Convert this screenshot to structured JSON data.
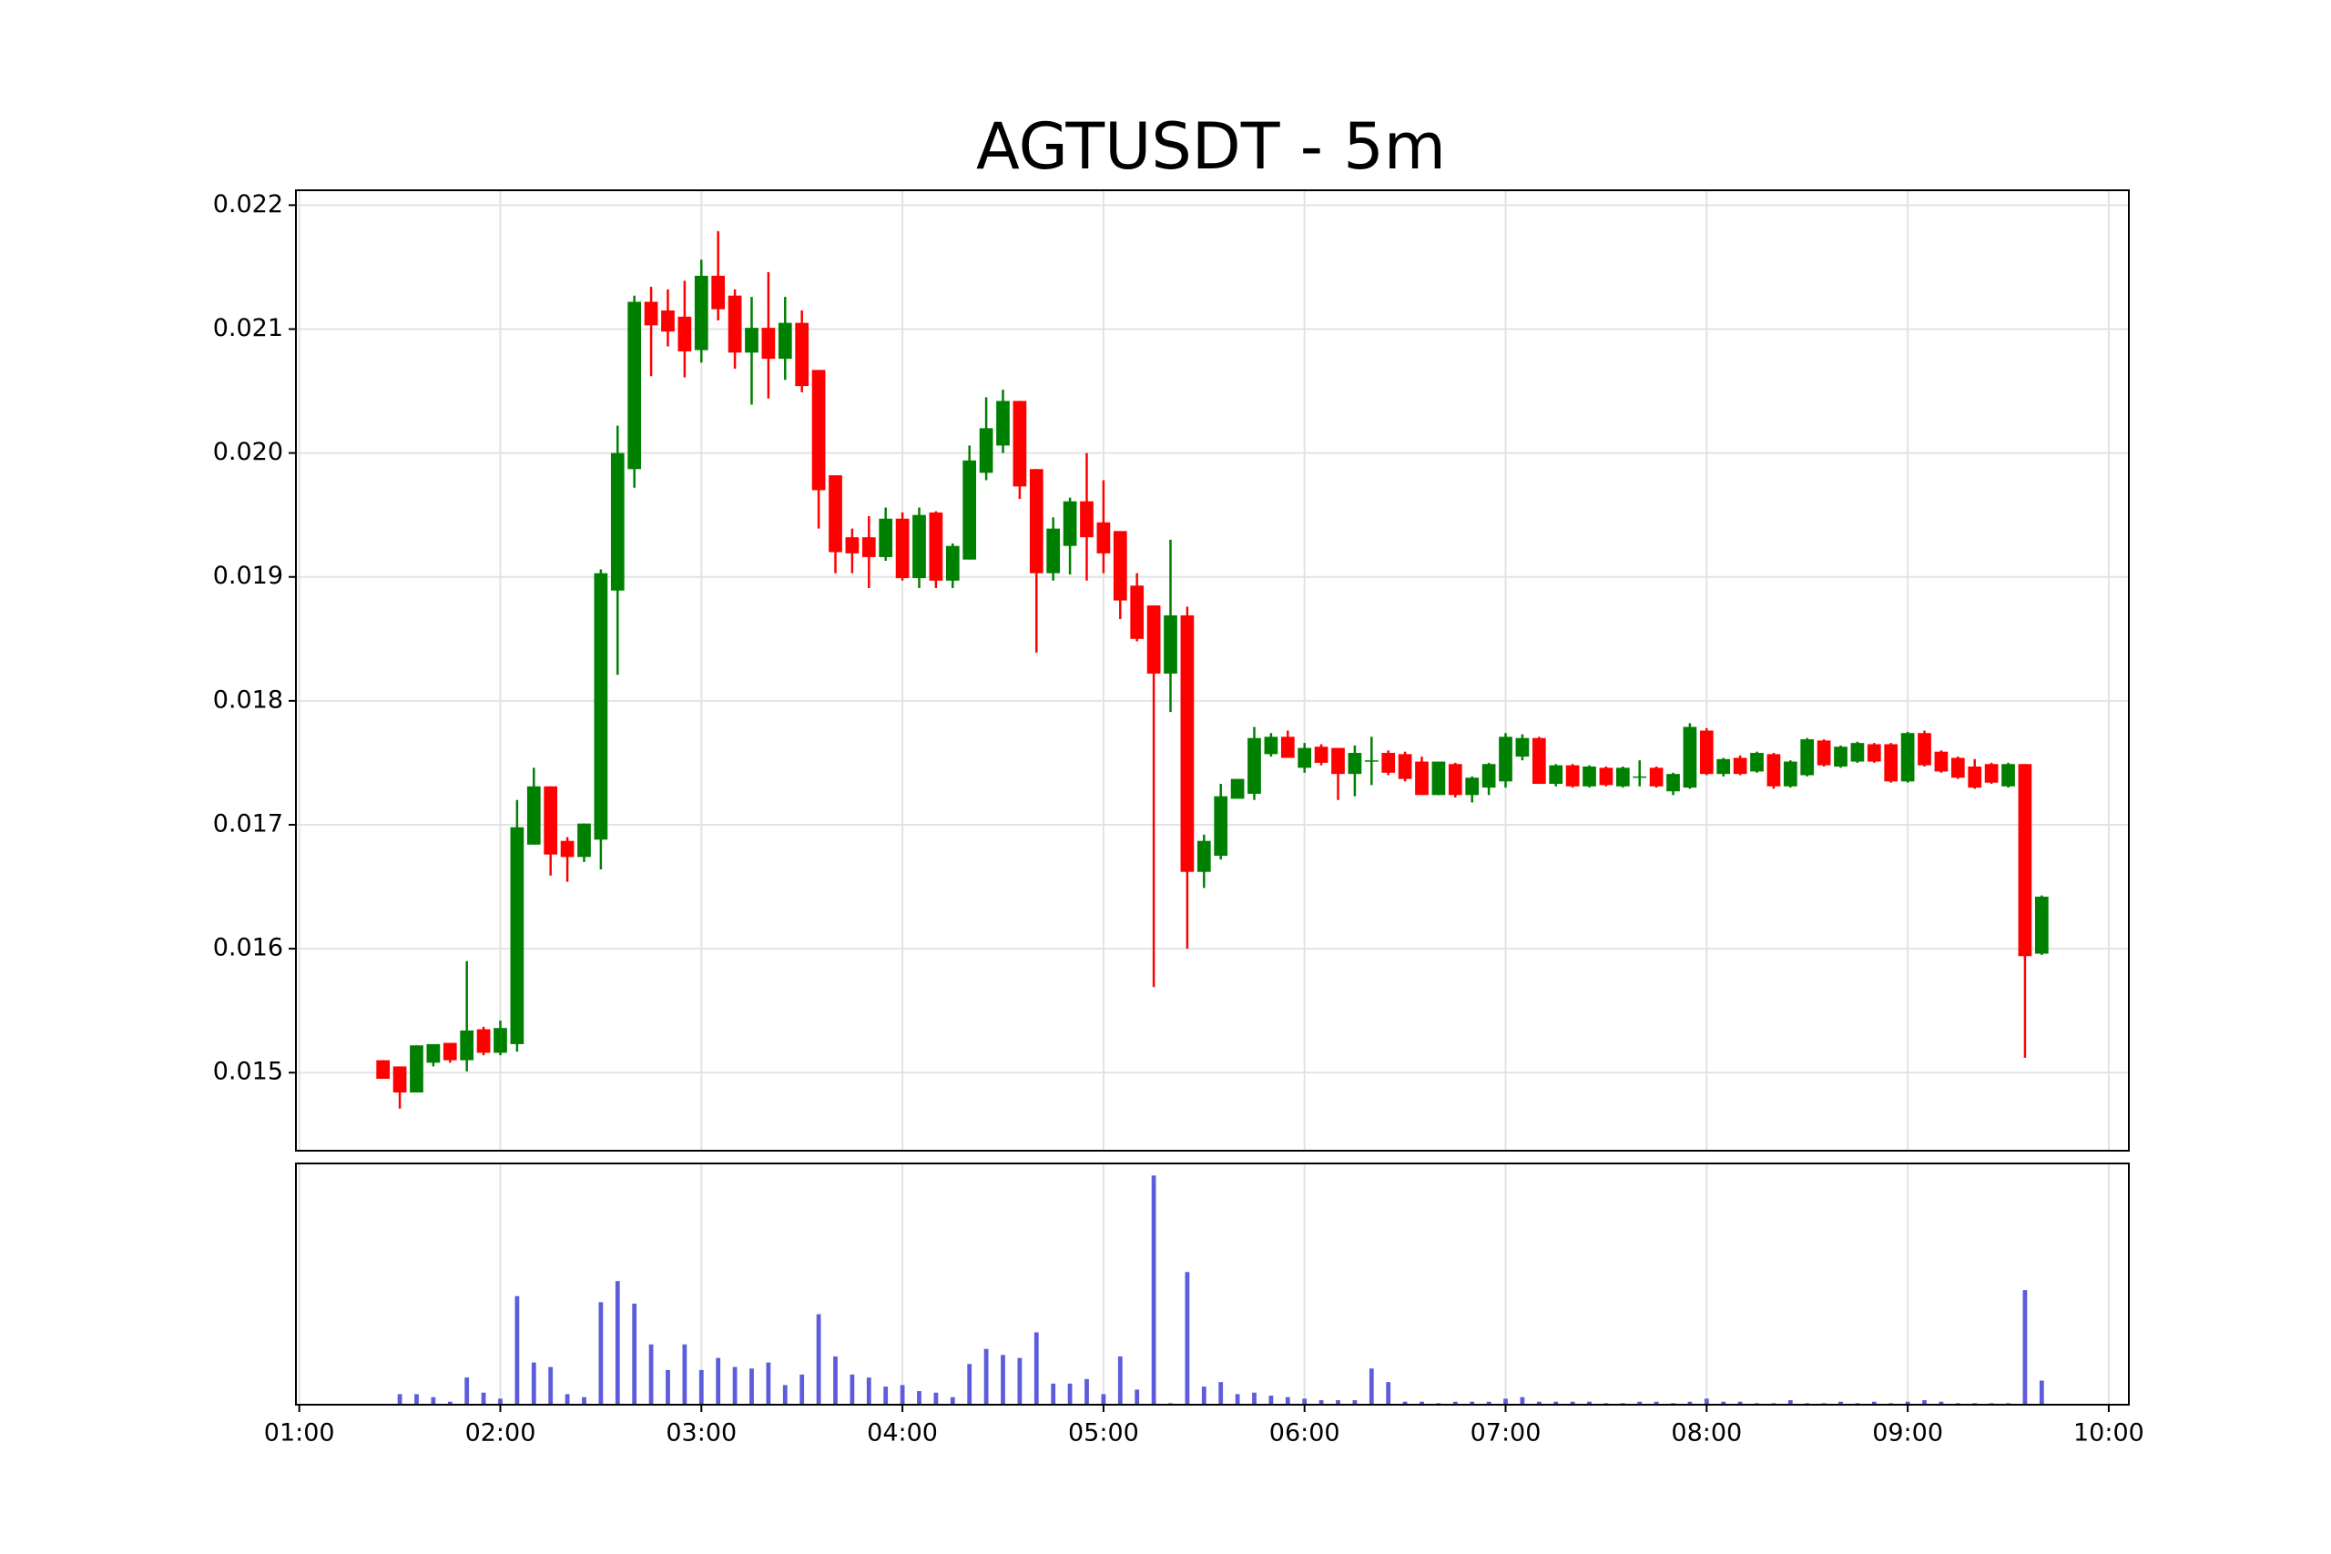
{
  "chart_data": {
    "type": "candlestick",
    "title": "AGTUSDT - 5m",
    "x": [
      "01:25",
      "01:30",
      "01:35",
      "01:40",
      "01:45",
      "01:50",
      "01:55",
      "02:00",
      "02:05",
      "02:10",
      "02:15",
      "02:20",
      "02:25",
      "02:30",
      "02:35",
      "02:40",
      "02:45",
      "02:50",
      "02:55",
      "03:00",
      "03:05",
      "03:10",
      "03:15",
      "03:20",
      "03:25",
      "03:30",
      "03:35",
      "03:40",
      "03:45",
      "03:50",
      "03:55",
      "04:00",
      "04:05",
      "04:10",
      "04:15",
      "04:20",
      "04:25",
      "04:30",
      "04:35",
      "04:40",
      "04:45",
      "04:50",
      "04:55",
      "05:00",
      "05:05",
      "05:10",
      "05:15",
      "05:20",
      "05:25",
      "05:30",
      "05:35",
      "05:40",
      "05:45",
      "05:50",
      "05:55",
      "06:00",
      "06:05",
      "06:10",
      "06:15",
      "06:20",
      "06:25",
      "06:30",
      "06:35",
      "06:40",
      "06:45",
      "06:50",
      "06:55",
      "07:00",
      "07:05",
      "07:10",
      "07:15",
      "07:20",
      "07:25",
      "07:30",
      "07:35",
      "07:40",
      "07:45",
      "07:50",
      "07:55",
      "08:00",
      "08:05",
      "08:10",
      "08:15",
      "08:20",
      "08:25",
      "08:30",
      "08:35",
      "08:40",
      "08:45",
      "08:50",
      "08:55",
      "09:00",
      "09:05",
      "09:10",
      "09:15",
      "09:20",
      "09:25",
      "09:30",
      "09:35",
      "09:40"
    ],
    "open": [
      0.0151,
      0.01505,
      0.01484,
      0.01508,
      0.01524,
      0.0151,
      0.01535,
      0.01516,
      0.01523,
      0.01684,
      0.01731,
      0.01687,
      0.01674,
      0.01688,
      0.01889,
      0.01987,
      0.02122,
      0.02115,
      0.0211,
      0.02083,
      0.02143,
      0.02127,
      0.02081,
      0.02101,
      0.02076,
      0.02105,
      0.02067,
      0.01982,
      0.01932,
      0.01932,
      0.01916,
      0.01947,
      0.01899,
      0.01952,
      0.01897,
      0.01914,
      0.01984,
      0.02006,
      0.02042,
      0.01987,
      0.01903,
      0.01925,
      0.01961,
      0.01944,
      0.01937,
      0.01893,
      0.01877,
      0.01822,
      0.01869,
      0.01662,
      0.01675,
      0.01721,
      0.01725,
      0.01757,
      0.01771,
      0.01746,
      0.01763,
      0.01762,
      0.01741,
      0.01752,
      0.01758,
      0.01757,
      0.01751,
      0.01724,
      0.01749,
      0.01724,
      0.0173,
      0.01735,
      0.01755,
      0.0177,
      0.01733,
      0.01748,
      0.01731,
      0.01746,
      0.01731,
      0.01739,
      0.01746,
      0.01727,
      0.0173,
      0.01776,
      0.01741,
      0.01754,
      0.01743,
      0.01757,
      0.01731,
      0.0174,
      0.01768,
      0.01747,
      0.01751,
      0.01765,
      0.01765,
      0.01735,
      0.01774,
      0.01759,
      0.01754,
      0.01747,
      0.01749,
      0.01731,
      0.01749,
      0.01596
    ],
    "high": [
      0.0151,
      0.01505,
      0.01522,
      0.01523,
      0.01524,
      0.0159,
      0.01537,
      0.01542,
      0.0172,
      0.01746,
      0.01731,
      0.0169,
      0.01701,
      0.01906,
      0.02022,
      0.02127,
      0.02134,
      0.02132,
      0.02139,
      0.02156,
      0.02179,
      0.02132,
      0.02126,
      0.02146,
      0.02126,
      0.02115,
      0.02067,
      0.01982,
      0.01939,
      0.01949,
      0.01956,
      0.01952,
      0.01956,
      0.01953,
      0.01927,
      0.02006,
      0.02045,
      0.02051,
      0.02042,
      0.01987,
      0.01948,
      0.01964,
      0.02,
      0.01978,
      0.01937,
      0.01903,
      0.01877,
      0.0193,
      0.01876,
      0.01692,
      0.01733,
      0.01737,
      0.01779,
      0.01774,
      0.01776,
      0.01766,
      0.01765,
      0.01762,
      0.01764,
      0.01771,
      0.0176,
      0.01759,
      0.01755,
      0.01751,
      0.0175,
      0.01739,
      0.0175,
      0.01774,
      0.01773,
      0.01771,
      0.01749,
      0.01749,
      0.01748,
      0.01747,
      0.01747,
      0.01752,
      0.01747,
      0.01742,
      0.01782,
      0.01778,
      0.01754,
      0.01756,
      0.01759,
      0.01758,
      0.01752,
      0.0177,
      0.01769,
      0.01764,
      0.01767,
      0.01766,
      0.01766,
      0.01775,
      0.01776,
      0.0176,
      0.01755,
      0.01753,
      0.0175,
      0.0175,
      0.01749,
      0.01643
    ],
    "low": [
      0.01495,
      0.01471,
      0.01484,
      0.01505,
      0.01508,
      0.01501,
      0.01514,
      0.01514,
      0.01517,
      0.01684,
      0.01659,
      0.01654,
      0.0167,
      0.01664,
      0.01821,
      0.01972,
      0.02062,
      0.02086,
      0.02061,
      0.02073,
      0.02107,
      0.02068,
      0.02039,
      0.02044,
      0.02059,
      0.02049,
      0.01939,
      0.01903,
      0.01903,
      0.01891,
      0.01913,
      0.01897,
      0.01891,
      0.01891,
      0.01891,
      0.01914,
      0.01978,
      0.02,
      0.01963,
      0.01839,
      0.01897,
      0.01902,
      0.01897,
      0.01903,
      0.01866,
      0.01848,
      0.01569,
      0.01791,
      0.016,
      0.01649,
      0.01672,
      0.01721,
      0.0172,
      0.01755,
      0.01754,
      0.01742,
      0.01748,
      0.0172,
      0.01723,
      0.01732,
      0.0174,
      0.01735,
      0.01724,
      0.01724,
      0.01722,
      0.01718,
      0.01724,
      0.0173,
      0.01752,
      0.01733,
      0.01731,
      0.0173,
      0.0173,
      0.01731,
      0.0173,
      0.01731,
      0.0173,
      0.01724,
      0.01729,
      0.0174,
      0.01739,
      0.0174,
      0.01742,
      0.01729,
      0.0173,
      0.01739,
      0.01747,
      0.01746,
      0.0175,
      0.0175,
      0.01734,
      0.01734,
      0.01747,
      0.01742,
      0.01737,
      0.01729,
      0.01733,
      0.0173,
      0.01512,
      0.01595
    ],
    "close": [
      0.01495,
      0.01484,
      0.01522,
      0.01523,
      0.0151,
      0.01534,
      0.01516,
      0.01536,
      0.01698,
      0.01731,
      0.01676,
      0.01674,
      0.01701,
      0.01903,
      0.02,
      0.02122,
      0.02103,
      0.02098,
      0.02082,
      0.02143,
      0.02116,
      0.02081,
      0.02101,
      0.02076,
      0.02105,
      0.02054,
      0.0197,
      0.0192,
      0.01919,
      0.01916,
      0.01947,
      0.01899,
      0.0195,
      0.01897,
      0.01925,
      0.01994,
      0.0202,
      0.02042,
      0.01973,
      0.01903,
      0.01939,
      0.01961,
      0.01932,
      0.01919,
      0.01881,
      0.0185,
      0.01822,
      0.01869,
      0.01662,
      0.01687,
      0.01723,
      0.01737,
      0.0177,
      0.01771,
      0.01754,
      0.01762,
      0.0175,
      0.01741,
      0.01758,
      0.01752,
      0.01742,
      0.01737,
      0.01724,
      0.01751,
      0.01724,
      0.01738,
      0.01749,
      0.01771,
      0.0177,
      0.01733,
      0.01748,
      0.01731,
      0.01747,
      0.01732,
      0.01746,
      0.01739,
      0.01731,
      0.01741,
      0.01779,
      0.01741,
      0.01753,
      0.01741,
      0.01758,
      0.01731,
      0.01751,
      0.01769,
      0.01748,
      0.01763,
      0.01766,
      0.01751,
      0.01735,
      0.01774,
      0.01748,
      0.01743,
      0.01738,
      0.0173,
      0.01734,
      0.01749,
      0.01594,
      0.01642
    ],
    "volume": [
      0,
      7,
      7,
      5,
      2,
      18,
      8,
      4,
      72,
      28,
      25,
      7,
      5,
      68,
      82,
      67,
      40,
      23,
      40,
      23,
      31,
      25,
      24,
      28,
      13,
      20,
      60,
      32,
      20,
      18,
      12,
      13,
      9,
      8,
      5,
      27,
      37,
      33,
      31,
      48,
      14,
      14,
      17,
      7,
      32,
      10,
      152,
      1,
      88,
      12,
      15,
      7,
      8,
      6,
      5,
      4,
      3,
      3,
      3,
      24,
      15,
      2,
      2,
      1,
      2,
      2,
      2,
      4,
      5,
      2,
      2,
      2,
      2,
      1,
      1,
      2,
      2,
      1,
      2,
      4,
      2,
      2,
      1,
      1,
      3,
      1,
      1,
      2,
      1,
      2,
      1,
      2,
      3,
      2,
      1,
      1,
      1,
      1,
      76,
      16
    ],
    "up_color": "#008000",
    "down_color": "#ff0000",
    "volume_color": "#5c5cdc",
    "xlim": [
      "00:59",
      "10:06"
    ],
    "xticks": [
      "01:00",
      "02:00",
      "03:00",
      "04:00",
      "05:00",
      "06:00",
      "07:00",
      "08:00",
      "09:00",
      "10:00"
    ],
    "ylim": [
      0.01437,
      0.02212
    ],
    "yticks": [
      0.015,
      0.016,
      0.017,
      0.018,
      0.019,
      {
        "value": 0.02,
        "label": "0.020"
      },
      0.021,
      0.022
    ],
    "volume_ylim": [
      0,
      160
    ],
    "grid": true
  }
}
